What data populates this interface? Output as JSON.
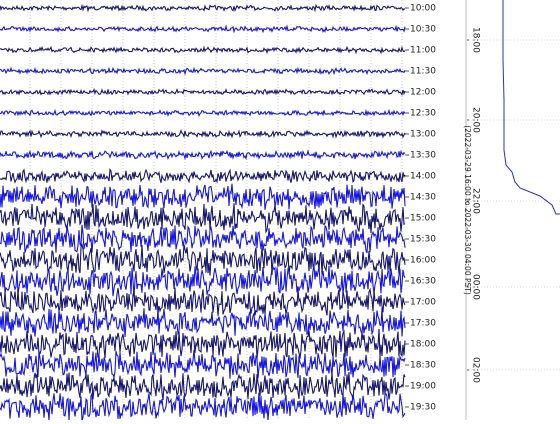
{
  "row_labels": [
    "10:00",
    "10:30",
    "11:00",
    "11:30",
    "12:00",
    "12:30",
    "13:00",
    "13:30",
    "14:00",
    "14:30",
    "15:00",
    "15:30",
    "16:00",
    "16:30",
    "17:00",
    "17:30",
    "18:00",
    "18:30",
    "19:00",
    "19:30"
  ],
  "side_panel": {
    "caption": "(2022-03-29 16:00 to 2022-03-30 04:00 PST)",
    "time_labels": [
      "18:00",
      "20:00",
      "22:00",
      "00:00",
      "02:00"
    ]
  }
}
